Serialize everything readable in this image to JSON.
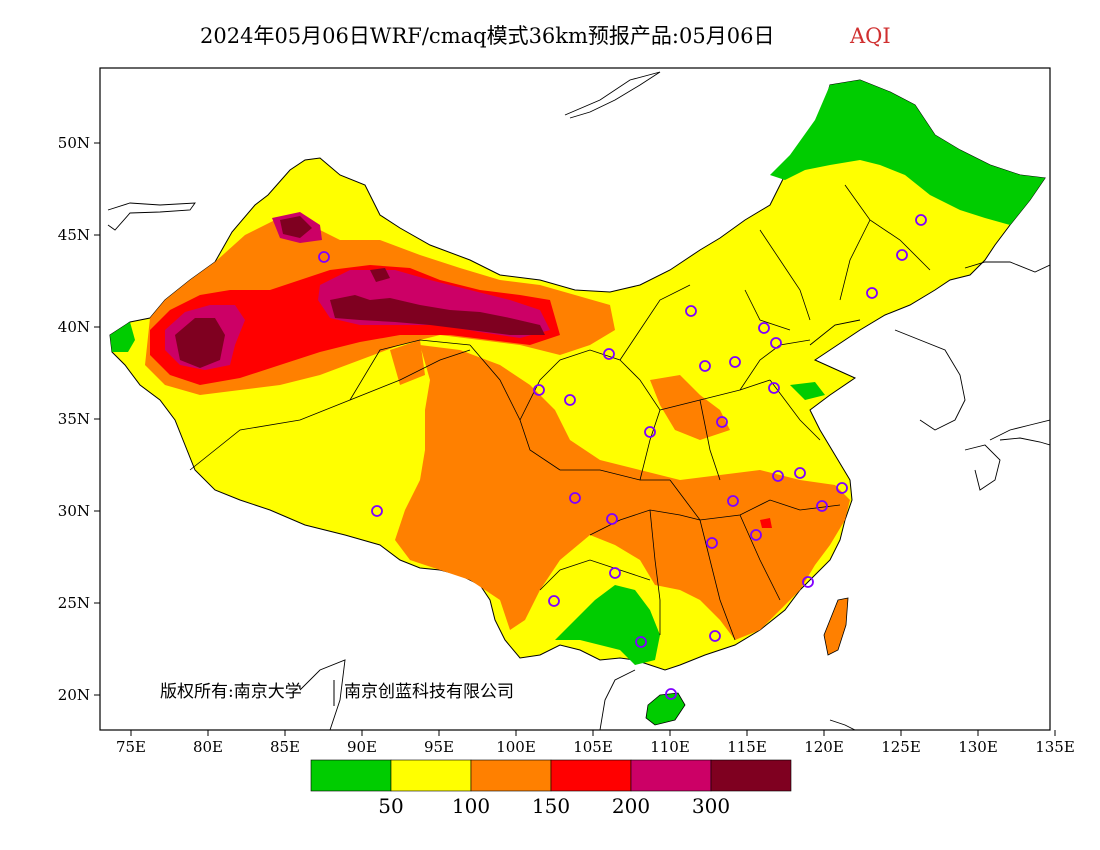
{
  "title": {
    "main": "2024年05月06日WRF/cmaq模式36km预报产品:05月06日",
    "variable": "AQI"
  },
  "copyright": {
    "left": "版权所有:南京大学",
    "right": "南京创蓝科技有限公司"
  },
  "axes": {
    "lon_labels": [
      "75E",
      "80E",
      "85E",
      "90E",
      "95E",
      "100E",
      "105E",
      "110E",
      "115E",
      "120E",
      "125E",
      "130E",
      "135E"
    ],
    "lat_labels": [
      "50N",
      "45N",
      "40N",
      "35N",
      "30N",
      "25N",
      "20N"
    ]
  },
  "legend": {
    "colors": [
      "#00cc00",
      "#ffff00",
      "#ff8000",
      "#ff0000",
      "#cc0066",
      "#7f0020"
    ],
    "labels": [
      "50",
      "100",
      "150",
      "200",
      "300"
    ]
  },
  "stations_count_note": "",
  "colors": {
    "good": "#00cc00",
    "moderate": "#ffff00",
    "usg": "#ff8000",
    "unhealthy": "#ff0000",
    "very_unhealthy": "#cc0066",
    "hazardous": "#7f0020",
    "station_ring": "#8000ff",
    "sea": "#ffffff"
  }
}
